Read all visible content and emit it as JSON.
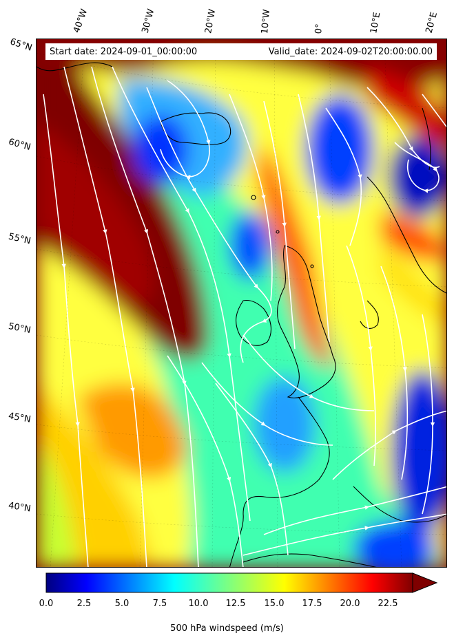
{
  "map": {
    "title_left": "Start date: 2024-09-01_00:00:00",
    "title_right": "Valid_date: 2024-09-02T20:00:00.00",
    "variable": "500 hPa windspeed (m/s)",
    "colormap": "jet",
    "colors": {
      "min": "#00007f",
      "low": "#0000ff",
      "mid_low": "#00ffff",
      "mid": "#7fff7f",
      "mid_high": "#ffff00",
      "high": "#ff0000",
      "max": "#7f0000",
      "streamlines": "#ffffff",
      "coastline": "#000000"
    },
    "longitude_labels": [
      "40°W",
      "30°W",
      "20°W",
      "10°W",
      "0°",
      "10°E",
      "20°E"
    ],
    "latitude_labels": [
      "65°N",
      "60°N",
      "55°N",
      "50°N",
      "45°N",
      "40°N"
    ]
  },
  "colorbar": {
    "label": "500 hPa windspeed (m/s)",
    "min": 0.0,
    "max": 25.0,
    "extend": "max",
    "ticks": [
      "0.0",
      "2.5",
      "5.0",
      "7.5",
      "10.0",
      "12.5",
      "15.0",
      "17.5",
      "20.0",
      "22.5"
    ]
  }
}
